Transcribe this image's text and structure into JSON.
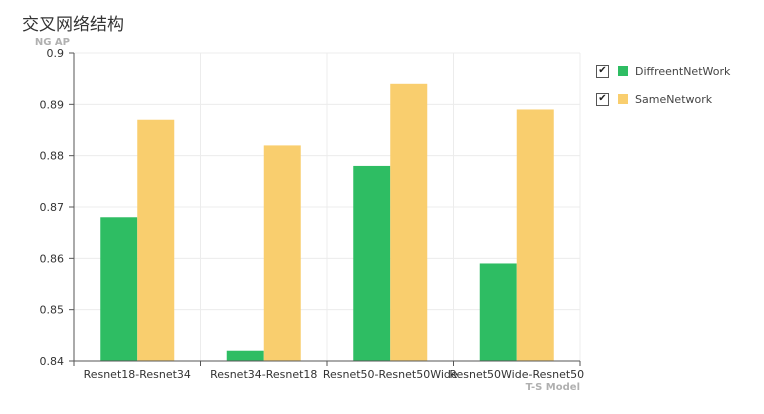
{
  "chart_data": {
    "type": "bar",
    "title": "交叉网络结构",
    "ylabel": "NG AP",
    "xlabel": "T-S Model",
    "categories": [
      "Resnet18-Resnet34",
      "Resnet34-Resnet18",
      "Resnet50-Resnet50Wide",
      "Resnet50Wide-Resnet50"
    ],
    "series": [
      {
        "name": "DiffreentNetWork",
        "values": [
          0.868,
          0.842,
          0.878,
          0.859
        ],
        "color": "#2ebd63"
      },
      {
        "name": "SameNetwork",
        "values": [
          0.887,
          0.882,
          0.894,
          0.889
        ],
        "color": "#f9ce6e"
      }
    ],
    "ylim": [
      0.84,
      0.9
    ],
    "yticks": [
      "0.84",
      "0.85",
      "0.86",
      "0.87",
      "0.88",
      "0.89",
      "0.9"
    ],
    "grid": true,
    "legend": "top-right"
  },
  "legend_items": [
    {
      "label": "DiffreentNetWork",
      "checked": true,
      "icon": "check-icon"
    },
    {
      "label": "SameNetwork",
      "checked": true,
      "icon": "check-icon"
    }
  ]
}
